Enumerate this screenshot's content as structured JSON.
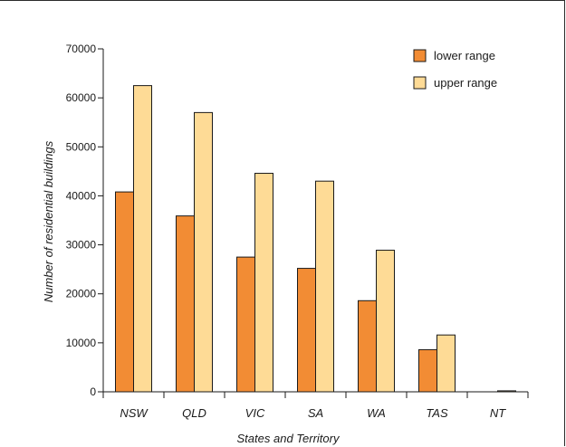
{
  "chart_data": {
    "type": "bar",
    "categories": [
      "NSW",
      "QLD",
      "VIC",
      "SA",
      "WA",
      "TAS",
      "NT"
    ],
    "series": [
      {
        "name": "lower range",
        "color": "#f28c34",
        "values": [
          40800,
          35900,
          27500,
          25200,
          18600,
          8600,
          0
        ]
      },
      {
        "name": "upper range",
        "color": "#fedb96",
        "values": [
          62500,
          57000,
          44600,
          43000,
          28900,
          11600,
          200
        ]
      }
    ],
    "title": "",
    "xlabel": "States and Territory",
    "ylabel": "Number of residential buildings",
    "ylim": [
      0,
      70000
    ],
    "yticks": [
      "0",
      "10000",
      "20000",
      "30000",
      "40000",
      "50000",
      "60000",
      "70000"
    ],
    "grid": false,
    "legend_position": "top-right"
  }
}
